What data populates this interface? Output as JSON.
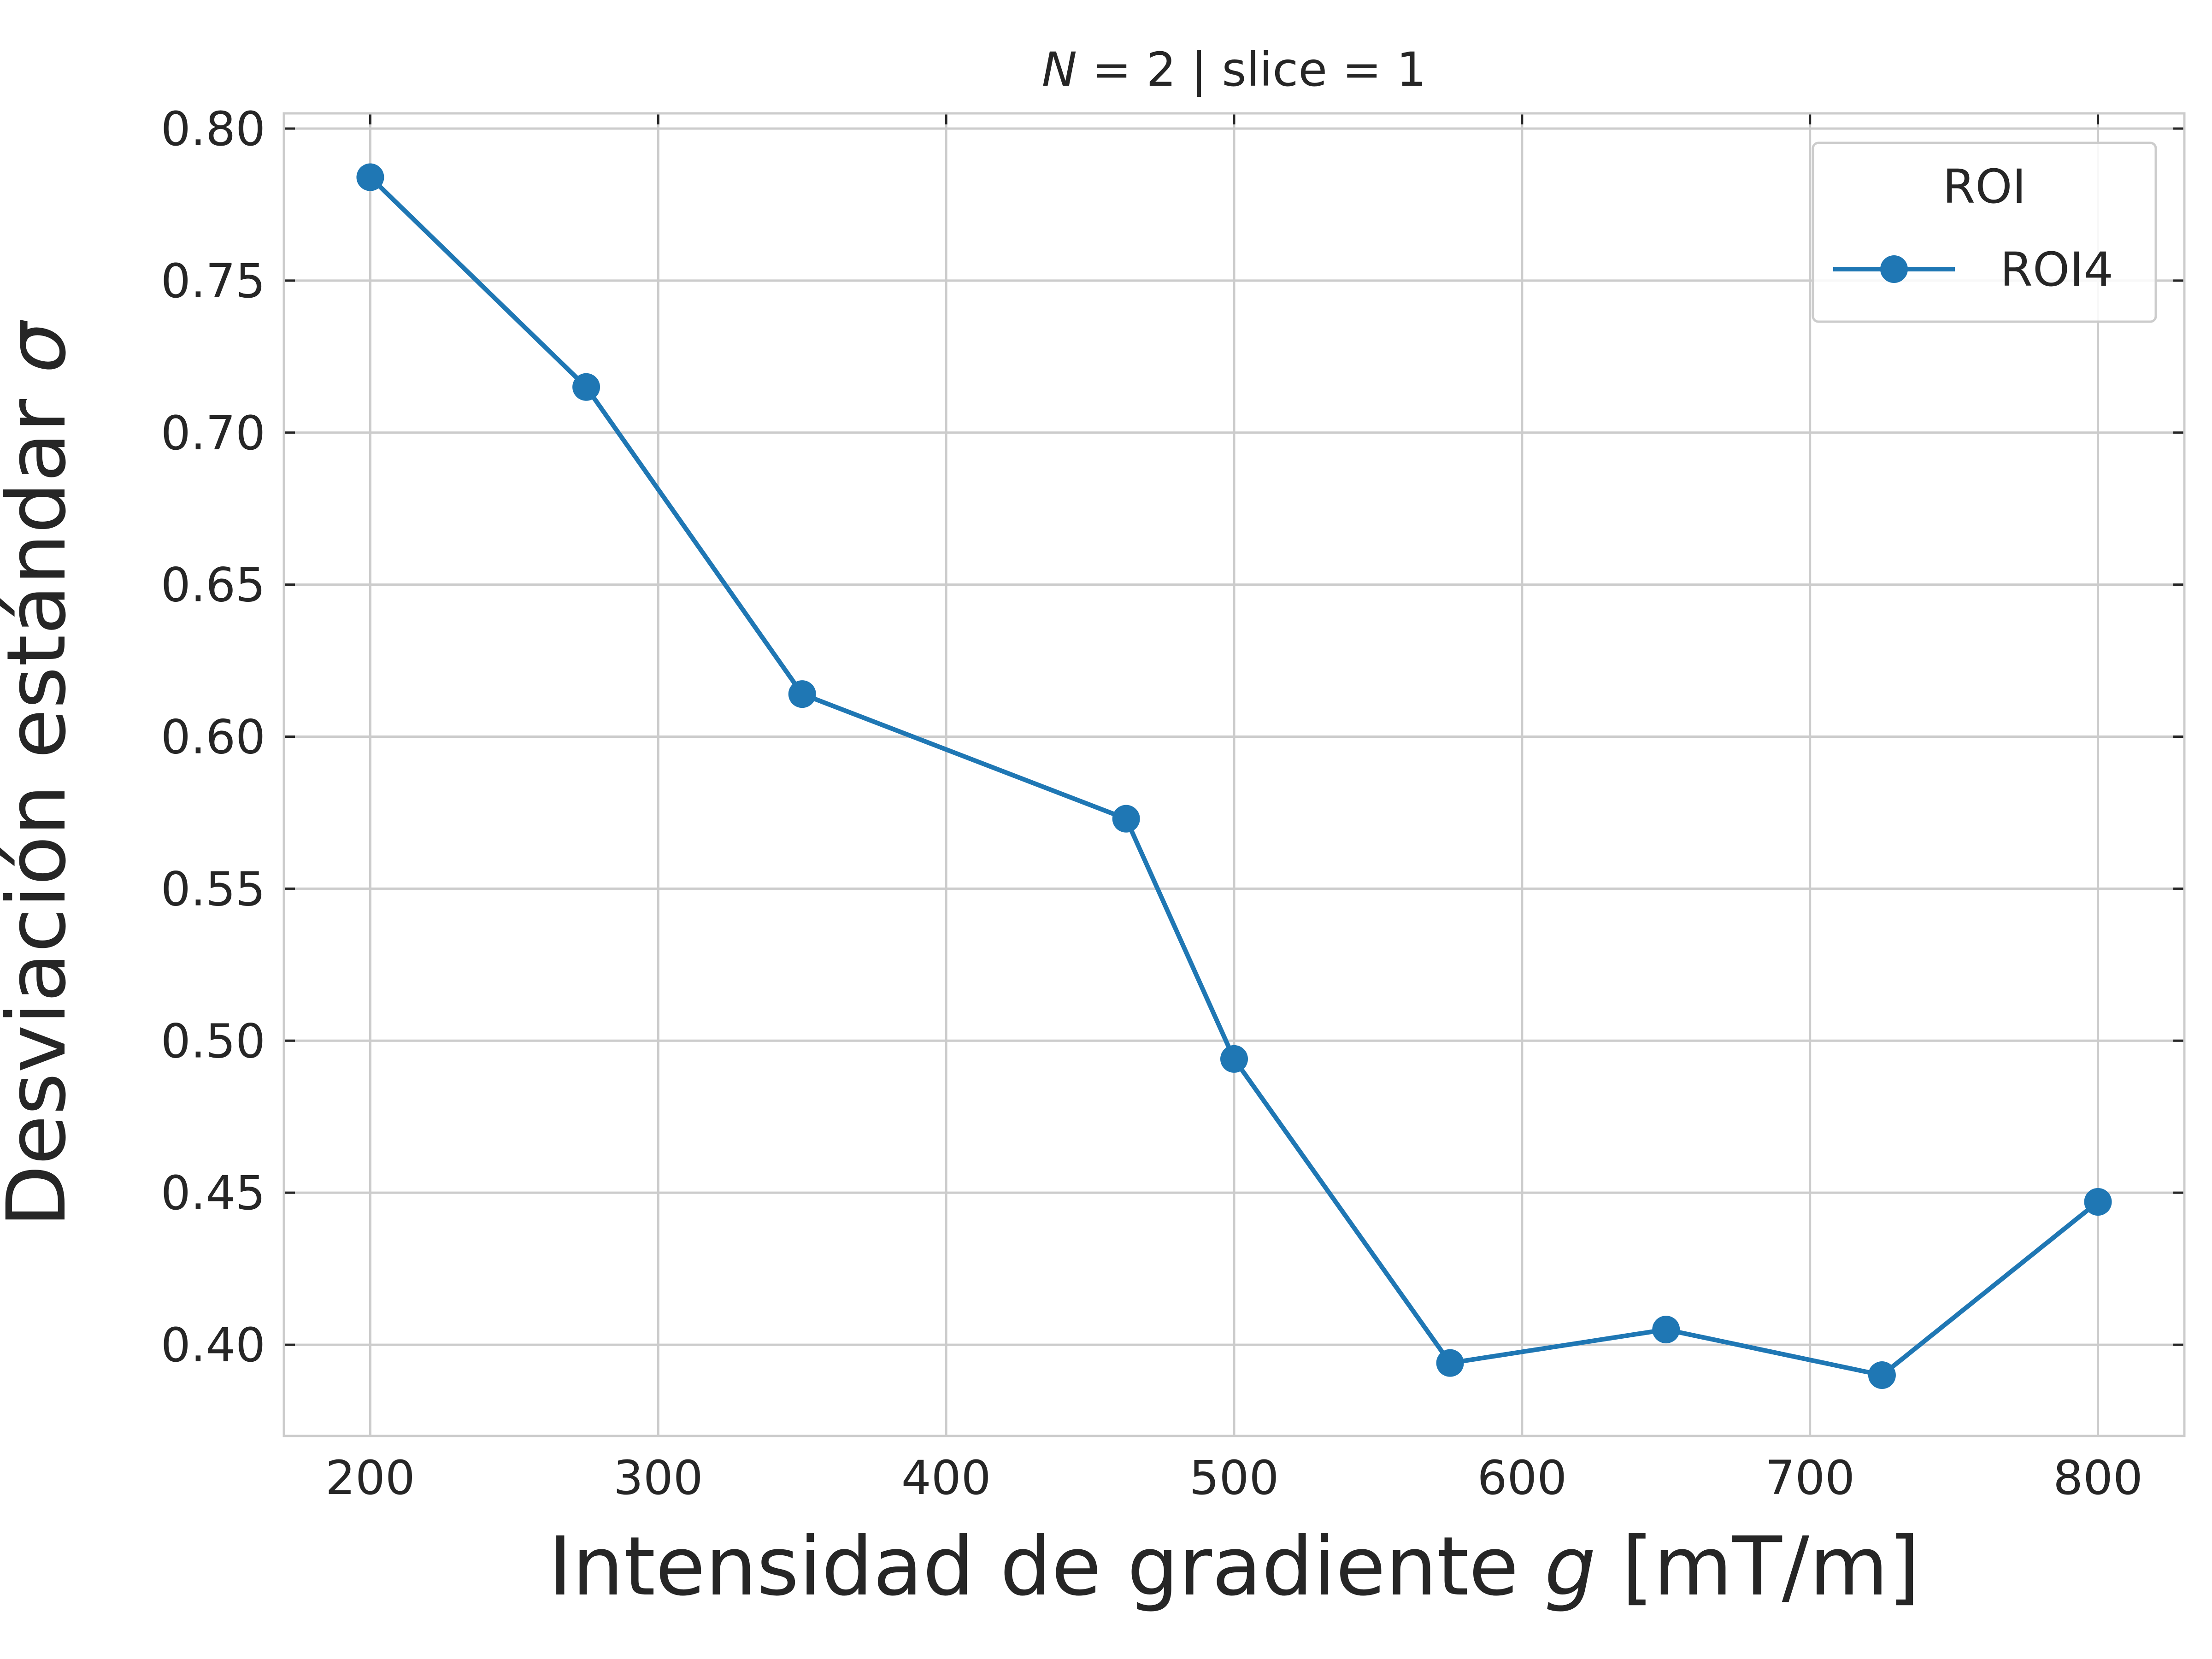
{
  "chart_data": {
    "type": "line",
    "title_parts": {
      "var": "N",
      "rest": " = 2 | slice = 1"
    },
    "xlabel_parts": {
      "pre": "Intensidad de gradiente ",
      "var": "g",
      "post": " [mT/m]"
    },
    "ylabel_parts": {
      "pre": "Desviación estándar ",
      "var": "σ"
    },
    "xlim": [
      170,
      830
    ],
    "ylim": [
      0.37,
      0.805
    ],
    "xticks": [
      200,
      300,
      400,
      500,
      600,
      700,
      800
    ],
    "yticks": [
      0.4,
      0.45,
      0.5,
      0.55,
      0.6,
      0.65,
      0.7,
      0.75,
      0.8
    ],
    "grid": true,
    "legend": {
      "title": "ROI",
      "placement": "top-right"
    },
    "series": [
      {
        "name": "ROI4",
        "color": "#1f77b4",
        "marker": "circle",
        "x": [
          200,
          275,
          350,
          462.5,
          500,
          575,
          650,
          725,
          800
        ],
        "y": [
          0.784,
          0.715,
          0.614,
          0.573,
          0.494,
          0.394,
          0.405,
          0.39,
          0.447
        ]
      }
    ]
  }
}
